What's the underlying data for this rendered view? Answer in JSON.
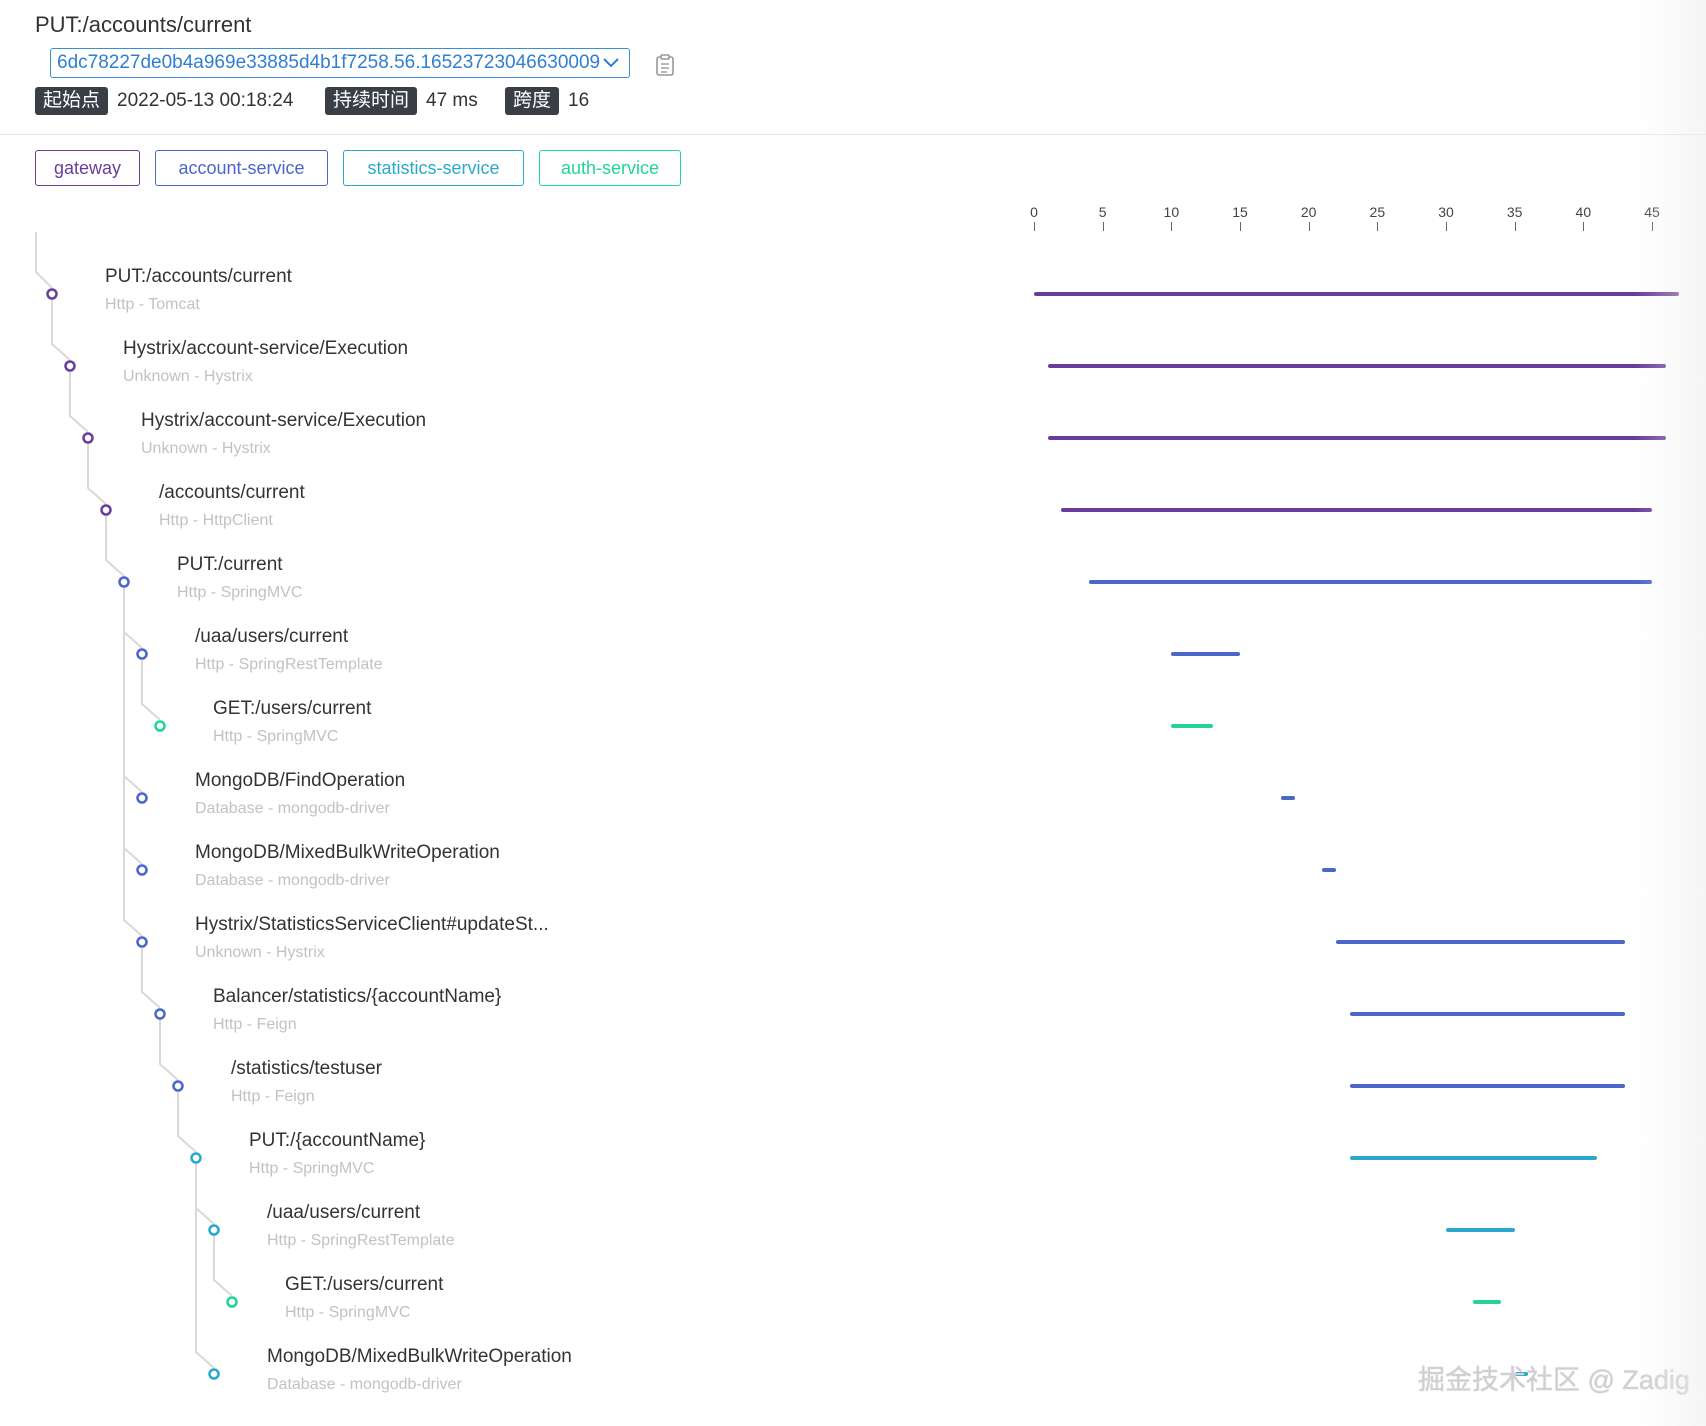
{
  "header": {
    "title": "PUT:/accounts/current",
    "trace_id": "6dc78227de0b4a969e33885d4b1f7258.56.16523723046630009",
    "start_label": "起始点",
    "start_value": "2022-05-13 00:18:24",
    "duration_label": "持续时间",
    "duration_value": "47 ms",
    "span_label": "跨度",
    "span_value": "16"
  },
  "services": [
    {
      "label": "gateway",
      "color": "#6a3d9a"
    },
    {
      "label": "account-service",
      "color": "#4a67c9"
    },
    {
      "label": "statistics-service",
      "color": "#2aa9cc"
    },
    {
      "label": "auth-service",
      "color": "#22d39b"
    }
  ],
  "axis": {
    "ticks": [
      "0",
      "5",
      "10",
      "15",
      "20",
      "25",
      "30",
      "35",
      "40",
      "45"
    ],
    "max_ms": 47
  },
  "spans": [
    {
      "name": "PUT:/accounts/current",
      "sub": "Http - Tomcat",
      "depth": 0,
      "color": "#6a3d9a",
      "start": 0,
      "end": 47
    },
    {
      "name": "Hystrix/account-service/Execution",
      "sub": "Unknown - Hystrix",
      "depth": 1,
      "color": "#6a3d9a",
      "start": 1,
      "end": 46
    },
    {
      "name": "Hystrix/account-service/Execution",
      "sub": "Unknown - Hystrix",
      "depth": 2,
      "color": "#6a3d9a",
      "start": 1,
      "end": 46
    },
    {
      "name": "/accounts/current",
      "sub": "Http - HttpClient",
      "depth": 3,
      "color": "#6a3d9a",
      "start": 2,
      "end": 45
    },
    {
      "name": "PUT:/current",
      "sub": "Http - SpringMVC",
      "depth": 4,
      "color": "#4a67c9",
      "start": 4,
      "end": 45
    },
    {
      "name": "/uaa/users/current",
      "sub": "Http - SpringRestTemplate",
      "depth": 5,
      "color": "#4a67c9",
      "start": 10,
      "end": 15
    },
    {
      "name": "GET:/users/current",
      "sub": "Http - SpringMVC",
      "depth": 6,
      "color": "#22d39b",
      "start": 10,
      "end": 13
    },
    {
      "name": "MongoDB/FindOperation",
      "sub": "Database - mongodb-driver",
      "depth": 5,
      "color": "#4a67c9",
      "start": 18,
      "end": 19
    },
    {
      "name": "MongoDB/MixedBulkWriteOperation",
      "sub": "Database - mongodb-driver",
      "depth": 5,
      "color": "#4a67c9",
      "start": 21,
      "end": 22
    },
    {
      "name": "Hystrix/StatisticsServiceClient#updateSt...",
      "sub": "Unknown - Hystrix",
      "depth": 5,
      "color": "#4a67c9",
      "start": 22,
      "end": 43
    },
    {
      "name": "Balancer/statistics/{accountName}",
      "sub": "Http - Feign",
      "depth": 6,
      "color": "#4a67c9",
      "start": 23,
      "end": 43
    },
    {
      "name": "/statistics/testuser",
      "sub": "Http - Feign",
      "depth": 7,
      "color": "#4a67c9",
      "start": 23,
      "end": 43
    },
    {
      "name": "PUT:/{accountName}",
      "sub": "Http - SpringMVC",
      "depth": 8,
      "color": "#2aa9cc",
      "start": 23,
      "end": 41
    },
    {
      "name": "/uaa/users/current",
      "sub": "Http - SpringRestTemplate",
      "depth": 9,
      "color": "#2aa9cc",
      "start": 30,
      "end": 35
    },
    {
      "name": "GET:/users/current",
      "sub": "Http - SpringMVC",
      "depth": 10,
      "color": "#22d39b",
      "start": 32,
      "end": 34
    },
    {
      "name": "MongoDB/MixedBulkWriteOperation",
      "sub": "Database - mongodb-driver",
      "depth": 9,
      "color": "#2aa9cc",
      "start": 35,
      "end": 36
    }
  ],
  "watermark": "掘金技术社区 @ Zadig"
}
